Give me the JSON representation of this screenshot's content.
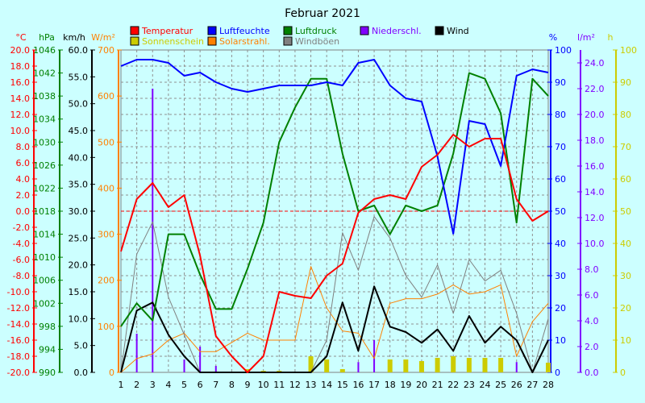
{
  "chart_data": {
    "type": "line",
    "title": "Februar 2021",
    "x": [
      1,
      2,
      3,
      4,
      5,
      6,
      7,
      8,
      9,
      10,
      11,
      12,
      13,
      14,
      15,
      16,
      17,
      18,
      19,
      20,
      21,
      22,
      23,
      24,
      25,
      26,
      27,
      28
    ],
    "xlim": [
      1,
      28
    ],
    "legend": [
      {
        "label": "Temperatur",
        "color": "#ff0000"
      },
      {
        "label": "Luftfeuchte",
        "color": "#0000ff"
      },
      {
        "label": "Luftdruck",
        "color": "#008000"
      },
      {
        "label": "Niederschl.",
        "color": "#8000ff"
      },
      {
        "label": "Wind",
        "color": "#000000"
      },
      {
        "label": "Sonnenschein",
        "color": "#cccc00"
      },
      {
        "label": "Solarstrahl.",
        "color": "#ff8000"
      },
      {
        "label": "Windböen",
        "color": "#808080"
      }
    ],
    "axes": [
      {
        "unit": "°C",
        "color": "#ff0000",
        "min": -20,
        "max": 20,
        "step": 2,
        "decimals": 1
      },
      {
        "unit": "hPa",
        "color": "#008000",
        "min": 990,
        "max": 1046,
        "step": 4,
        "decimals": 0
      },
      {
        "unit": "km/h",
        "color": "#000000",
        "min": 0,
        "max": 60,
        "step": 5,
        "decimals": 1
      },
      {
        "unit": "W/m²",
        "color": "#ff8000",
        "min": 0,
        "max": 700,
        "step": 100,
        "decimals": 0
      },
      {
        "unit": "%",
        "color": "#0000ff",
        "min": 0,
        "max": 100,
        "step": 10,
        "decimals": 0
      },
      {
        "unit": "l/m²",
        "color": "#8000ff",
        "min": 0,
        "max": 25,
        "step": 2,
        "decimals": 1
      },
      {
        "unit": "h",
        "color": "#cccc00",
        "min": 0,
        "max": 100,
        "step": 10,
        "decimals": 0
      }
    ],
    "series": [
      {
        "name": "Temperatur",
        "axis": 0,
        "color": "#ff0000",
        "values": [
          -5.0,
          1.5,
          3.5,
          0.5,
          2.0,
          -5.5,
          -15.5,
          -18.0,
          -20.0,
          -18.0,
          -10.0,
          -10.5,
          -10.8,
          -8.0,
          -6.5,
          -0.2,
          1.5,
          2.0,
          1.5,
          5.5,
          7.0,
          9.5,
          8.0,
          9.0,
          9.0,
          1.5,
          -1.2,
          0.0
        ]
      },
      {
        "name": "Luftfeuchte",
        "axis": 4,
        "color": "#0000ff",
        "values": [
          95,
          97,
          97,
          96,
          92,
          93,
          90,
          88,
          87,
          88,
          89,
          89,
          89,
          90,
          89,
          96,
          97,
          89,
          85,
          84,
          67,
          43,
          78,
          77,
          64,
          92,
          94,
          93
        ]
      },
      {
        "name": "Luftdruck",
        "axis": 1,
        "color": "#008000",
        "values": [
          998,
          1002,
          999,
          1014,
          1014,
          1007,
          1001,
          1001,
          1008,
          1016,
          1030,
          1036,
          1041,
          1041,
          1028,
          1018,
          1019,
          1014,
          1019,
          1018,
          1019,
          1028,
          1042,
          1041,
          1035,
          1016,
          1041,
          1038
        ]
      },
      {
        "name": "Wind",
        "axis": 2,
        "color": "#000000",
        "values": [
          0.0,
          11.5,
          13.0,
          7.0,
          3.0,
          0.0,
          0.0,
          0.0,
          0.0,
          0.0,
          0.0,
          0.0,
          0.0,
          3.0,
          13.0,
          4.0,
          16.0,
          8.5,
          7.5,
          5.5,
          8.0,
          4.0,
          10.5,
          5.5,
          8.5,
          6.0,
          0.0,
          6.0
        ]
      },
      {
        "name": "Windböen",
        "axis": 2,
        "color": "#808080",
        "values": [
          0.0,
          22.0,
          28.0,
          14.0,
          7.0,
          0.0,
          0.0,
          0.0,
          0.0,
          0.0,
          0.0,
          0.0,
          0.0,
          6.0,
          26.0,
          19.0,
          29.0,
          25.0,
          18.0,
          14.0,
          20.0,
          11.0,
          21.0,
          17.0,
          19.0,
          11.0,
          0.0,
          10.0
        ]
      },
      {
        "name": "Solarstrahl.",
        "axis": 3,
        "color": "#ff8000",
        "values": [
          0,
          30,
          40,
          70,
          85,
          45,
          45,
          65,
          85,
          70,
          70,
          70,
          230,
          140,
          90,
          85,
          30,
          150,
          160,
          160,
          170,
          190,
          170,
          175,
          190,
          35,
          110,
          150
        ]
      }
    ],
    "bars": [
      {
        "name": "Niederschl.",
        "axis": 5,
        "color": "#8000ff",
        "width": 2,
        "values": [
          0,
          3.0,
          22.0,
          0,
          1.0,
          2.0,
          0.5,
          0,
          0,
          0,
          0,
          0,
          0,
          0,
          0,
          0.8,
          2.5,
          0,
          1.0,
          0,
          0,
          0,
          0,
          0,
          0,
          0.8,
          0,
          0
        ]
      },
      {
        "name": "Sonnenschein",
        "axis": 6,
        "color": "#cccc00",
        "width": 6,
        "values": [
          0,
          0,
          0,
          0,
          0,
          0,
          0,
          0,
          1,
          0.5,
          0.5,
          0,
          5,
          4,
          1,
          0,
          0,
          4,
          4,
          3.5,
          4.5,
          5,
          4.5,
          4.5,
          4.5,
          0,
          0,
          3
        ]
      }
    ],
    "reference_line": {
      "axis": 0,
      "value": 0,
      "color": "#ff0000"
    }
  }
}
